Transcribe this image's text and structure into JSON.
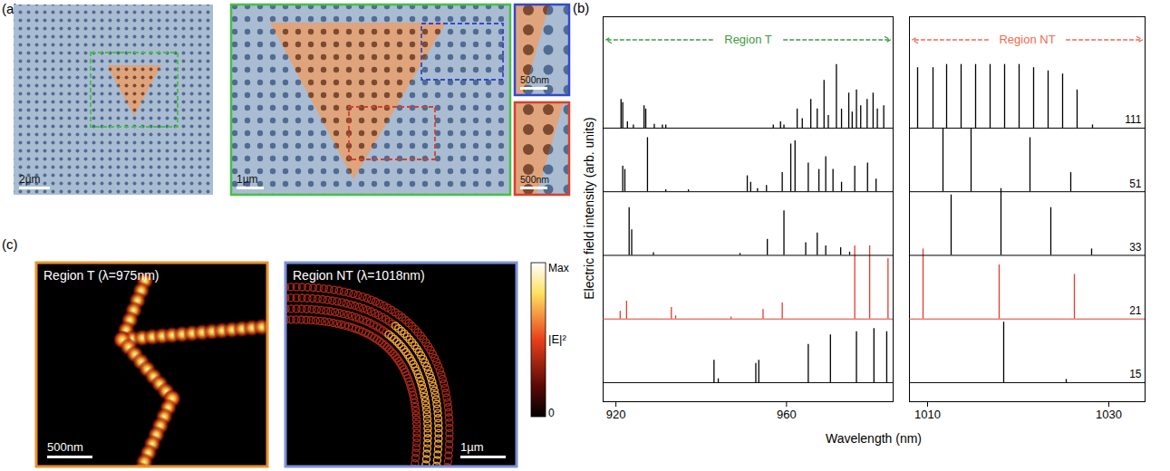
{
  "panel_a": {
    "label": "(a)",
    "images": [
      {
        "scale_bar": "2µm"
      },
      {
        "scale_bar": "1µm",
        "color": "#46c046"
      },
      {
        "scale_bar": "500nm",
        "color": "#3349cc"
      },
      {
        "scale_bar": "500nm",
        "color": "#d8402c"
      }
    ]
  },
  "chart_data": {
    "type": "stem",
    "label": "(b)",
    "ylabel": "Electric field intensity (arb. units)",
    "xlabel": "Wavelength (nm)",
    "tick_labels": "x",
    "ylim": [
      -0.3,
      5.75
    ],
    "panels": [
      {
        "title": "Region T",
        "color": "#3f9a3f",
        "xlim": [
          917,
          985
        ],
        "xticks": [
          920,
          960
        ]
      },
      {
        "title": "Region NT",
        "color": "#ef6a50",
        "xlim": [
          1008,
          1034
        ],
        "xticks": [
          1010,
          1030
        ]
      }
    ],
    "series": [
      {
        "name": "15",
        "color": "#000000",
        "x": [
          943,
          944,
          952.8,
          953.5,
          965.1,
          970.3,
          976.4,
          980.5,
          983.5,
          1018.4,
          1025.3
        ],
        "values": [
          0.35,
          0.06,
          0.3,
          0.35,
          0.6,
          0.75,
          0.8,
          0.85,
          0.8,
          0.95,
          0.05
        ]
      },
      {
        "name": "21",
        "color": "#e53a2f",
        "x": [
          921,
          922.5,
          933,
          934,
          947,
          954.5,
          959,
          976,
          979.5,
          983.8,
          1009.5,
          1017.9,
          1026.2
        ],
        "values": [
          0.12,
          0.28,
          0.18,
          0.05,
          0.03,
          0.15,
          0.25,
          1.15,
          1.15,
          0.95,
          1.1,
          0.85,
          0.7
        ]
      },
      {
        "name": "33",
        "color": "#000000",
        "x": [
          923.1,
          923.7,
          928.8,
          949.1,
          955.5,
          959.4,
          964.5,
          967.2,
          969.2,
          972.7,
          974.8,
          1012.6,
          1018.1,
          1023.6,
          1028.1
        ],
        "values": [
          0.75,
          0.4,
          0.04,
          0.03,
          0.25,
          0.7,
          0.2,
          0.35,
          0.15,
          0.12,
          0.05,
          0.95,
          1.05,
          0.75,
          0.1
        ]
      },
      {
        "name": "51",
        "color": "#000000",
        "x": [
          921.6,
          922.1,
          927.4,
          931.7,
          937,
          950.8,
          951.6,
          953.2,
          955.3,
          959,
          961,
          962,
          965.1,
          967.6,
          969.2,
          970.9,
          972.9,
          976,
          979,
          981,
          1011.7,
          1014.8,
          1021.3,
          1025.8
        ],
        "values": [
          0.4,
          0.35,
          0.85,
          0.03,
          0.03,
          0.25,
          0.15,
          0.05,
          0.1,
          0.3,
          0.75,
          0.8,
          0.45,
          0.35,
          0.55,
          0.35,
          0.15,
          0.4,
          0.45,
          0.2,
          1.0,
          1.0,
          0.85,
          0.3
        ]
      },
      {
        "name": "111",
        "color": "#000000",
        "x": [
          921.2,
          921.6,
          922.7,
          924.1,
          926.6,
          927,
          929,
          930.9,
          931.7,
          956.9,
          958.6,
          959.4,
          962.5,
          963.7,
          965.7,
          967.2,
          968.8,
          969.8,
          971.7,
          972.9,
          974.6,
          975.4,
          976.4,
          977.4,
          978.9,
          980.3,
          981.3,
          982.8,
          1008.9,
          1010.6,
          1012.1,
          1013.7,
          1015.3,
          1016.9,
          1018.5,
          1020.1,
          1021.7,
          1023.3,
          1024.9,
          1026.5,
          1028.2
        ],
        "values": [
          0.45,
          0.4,
          0.1,
          0.05,
          0.35,
          0.3,
          0.06,
          0.05,
          0.05,
          0.05,
          0.1,
          0.05,
          0.3,
          0.15,
          0.45,
          0.3,
          0.75,
          0.2,
          1.0,
          0.3,
          0.55,
          0.25,
          0.6,
          0.35,
          0.45,
          0.55,
          0.3,
          0.35,
          0.95,
          0.95,
          1.0,
          1.0,
          1.0,
          1.0,
          1.0,
          1.0,
          0.95,
          0.9,
          0.85,
          0.6,
          0.05
        ]
      }
    ]
  },
  "panel_c": {
    "label": "(c)",
    "maps": [
      {
        "title": "Region T (λ=975nm)",
        "scale_bar": "500nm",
        "color": "#e8912a"
      },
      {
        "title": "Region NT (λ=1018nm)",
        "scale_bar": "1µm",
        "color": "#7d8fd9"
      }
    ],
    "colorbar": {
      "title": "|E|²",
      "max_label": "Max",
      "min_label": "0"
    }
  }
}
